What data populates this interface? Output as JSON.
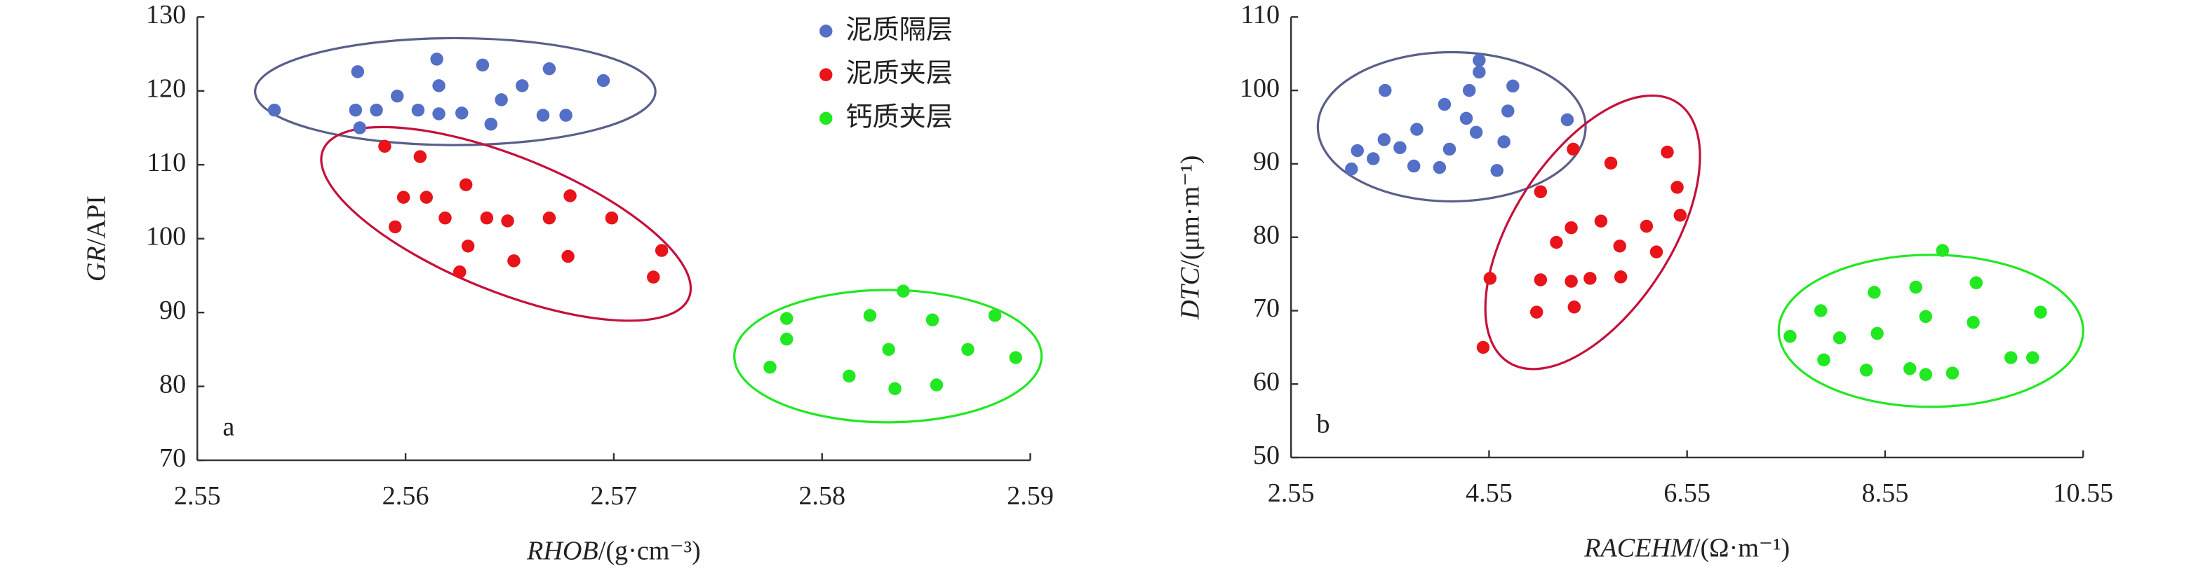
{
  "chart_data": [
    {
      "type": "scatter",
      "panel_label": "a",
      "x_label_var": "RHOB",
      "x_label_unit": "/(g·cm⁻³)",
      "y_label_var": "GR",
      "y_label_unit": "/API",
      "xlim": [
        2.55,
        2.59
      ],
      "xticks": [
        2.55,
        2.56,
        2.57,
        2.58,
        2.59
      ],
      "ylim": [
        70,
        130
      ],
      "yticks": [
        70,
        80,
        90,
        100,
        110,
        120,
        130
      ],
      "legend": "upper right",
      "series": [
        {
          "name": "泥质隔层",
          "color": "#5470c6",
          "x": [
            2.5537,
            2.5577,
            2.5576,
            2.5586,
            2.5578,
            2.5596,
            2.5606,
            2.5615,
            2.5616,
            2.5616,
            2.5627,
            2.5637,
            2.5641,
            2.5646,
            2.5656,
            2.5669,
            2.5666,
            2.5677,
            2.5695
          ],
          "values": [
            117.4,
            122.6,
            117.4,
            117.4,
            115.0,
            119.3,
            117.4,
            124.3,
            120.7,
            116.9,
            117.0,
            123.5,
            115.5,
            118.8,
            120.7,
            123.0,
            116.7,
            116.7,
            121.4
          ]
        },
        {
          "name": "泥质夹层",
          "color": "#e8141a",
          "x": [
            2.559,
            2.5599,
            2.5595,
            2.5607,
            2.561,
            2.5619,
            2.5629,
            2.563,
            2.5626,
            2.5639,
            2.5649,
            2.5652,
            2.5669,
            2.5678,
            2.5679,
            2.5699,
            2.5719,
            2.5723
          ],
          "values": [
            112.5,
            105.6,
            101.6,
            111.1,
            105.6,
            102.8,
            107.3,
            99.0,
            95.5,
            102.8,
            102.4,
            97.0,
            102.8,
            97.6,
            105.8,
            102.8,
            94.8,
            98.4
          ]
        },
        {
          "name": "钙质夹层",
          "color": "#22e822",
          "x": [
            2.5775,
            2.5783,
            2.5783,
            2.5813,
            2.5823,
            2.5832,
            2.5839,
            2.5835,
            2.5853,
            2.5855,
            2.587,
            2.5883,
            2.5893
          ],
          "values": [
            82.6,
            89.2,
            86.4,
            81.4,
            89.6,
            85.0,
            92.9,
            79.7,
            89.0,
            80.2,
            85.0,
            89.6,
            83.9
          ]
        }
      ]
    },
    {
      "type": "scatter",
      "panel_label": "b",
      "x_label_var": "RACEHM",
      "x_label_unit": "/(Ω·m⁻¹)",
      "y_label_var": "DTC",
      "y_label_unit": "/(μm·m⁻¹)",
      "xlim": [
        2.55,
        10.55
      ],
      "xticks": [
        2.55,
        4.55,
        6.55,
        8.55,
        10.55
      ],
      "ylim": [
        50,
        110
      ],
      "yticks": [
        50,
        60,
        70,
        80,
        90,
        100,
        110
      ],
      "series": [
        {
          "color": "#5470c6",
          "x": [
            3.16,
            3.22,
            3.38,
            3.49,
            3.5,
            3.65,
            3.79,
            3.82,
            4.05,
            4.1,
            4.15,
            4.32,
            4.35,
            4.42,
            4.45,
            4.45,
            4.63,
            4.74,
            4.79,
            4.7,
            5.34
          ],
          "values": [
            89.3,
            91.8,
            90.7,
            93.3,
            100.0,
            92.2,
            89.7,
            94.7,
            89.5,
            98.1,
            92.0,
            96.2,
            100.0,
            94.3,
            102.5,
            104.1,
            89.1,
            97.2,
            100.6,
            93.0,
            96.0
          ]
        },
        {
          "color": "#e8141a",
          "x": [
            4.49,
            4.56,
            5.03,
            5.07,
            5.07,
            5.23,
            5.38,
            5.38,
            5.4,
            5.41,
            5.57,
            5.68,
            5.78,
            5.87,
            5.88,
            6.14,
            6.24,
            6.35,
            6.45,
            6.48
          ],
          "values": [
            65.0,
            74.4,
            69.8,
            74.2,
            86.2,
            79.3,
            81.3,
            74.0,
            92.0,
            70.5,
            74.4,
            82.2,
            90.1,
            78.8,
            74.6,
            81.5,
            78.0,
            91.6,
            86.8,
            83.0
          ]
        },
        {
          "color": "#22e822",
          "x": [
            7.59,
            7.9,
            7.93,
            8.09,
            8.36,
            8.44,
            8.47,
            8.8,
            8.86,
            8.96,
            8.96,
            9.13,
            9.23,
            9.44,
            9.47,
            9.82,
            10.04,
            10.12
          ],
          "values": [
            66.5,
            70.0,
            63.3,
            66.3,
            61.9,
            72.5,
            66.9,
            62.1,
            73.2,
            69.2,
            61.3,
            78.2,
            61.5,
            68.4,
            73.8,
            63.6,
            63.6,
            69.8
          ]
        }
      ]
    }
  ]
}
